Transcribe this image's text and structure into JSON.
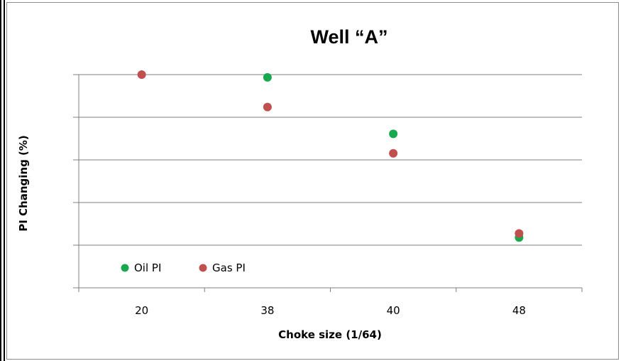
{
  "chart_data": {
    "type": "scatter",
    "title": "Well “A”",
    "xlabel": "Choke size (1/64)",
    "ylabel": "PI Changing (%)",
    "categories": [
      "20",
      "38",
      "40",
      "48"
    ],
    "ylim": [
      0,
      100
    ],
    "y_gridlines": [
      20,
      40,
      60,
      80,
      100
    ],
    "grid": true,
    "legend_position": "bottom-left",
    "series": [
      {
        "name": "Oil PI",
        "color": "#19a84f",
        "values": [
          null,
          98.7,
          72.2,
          23.6
        ]
      },
      {
        "name": "Gas PI",
        "color": "#c0504d",
        "values": [
          100,
          84.8,
          63.1,
          25.5
        ]
      }
    ]
  }
}
